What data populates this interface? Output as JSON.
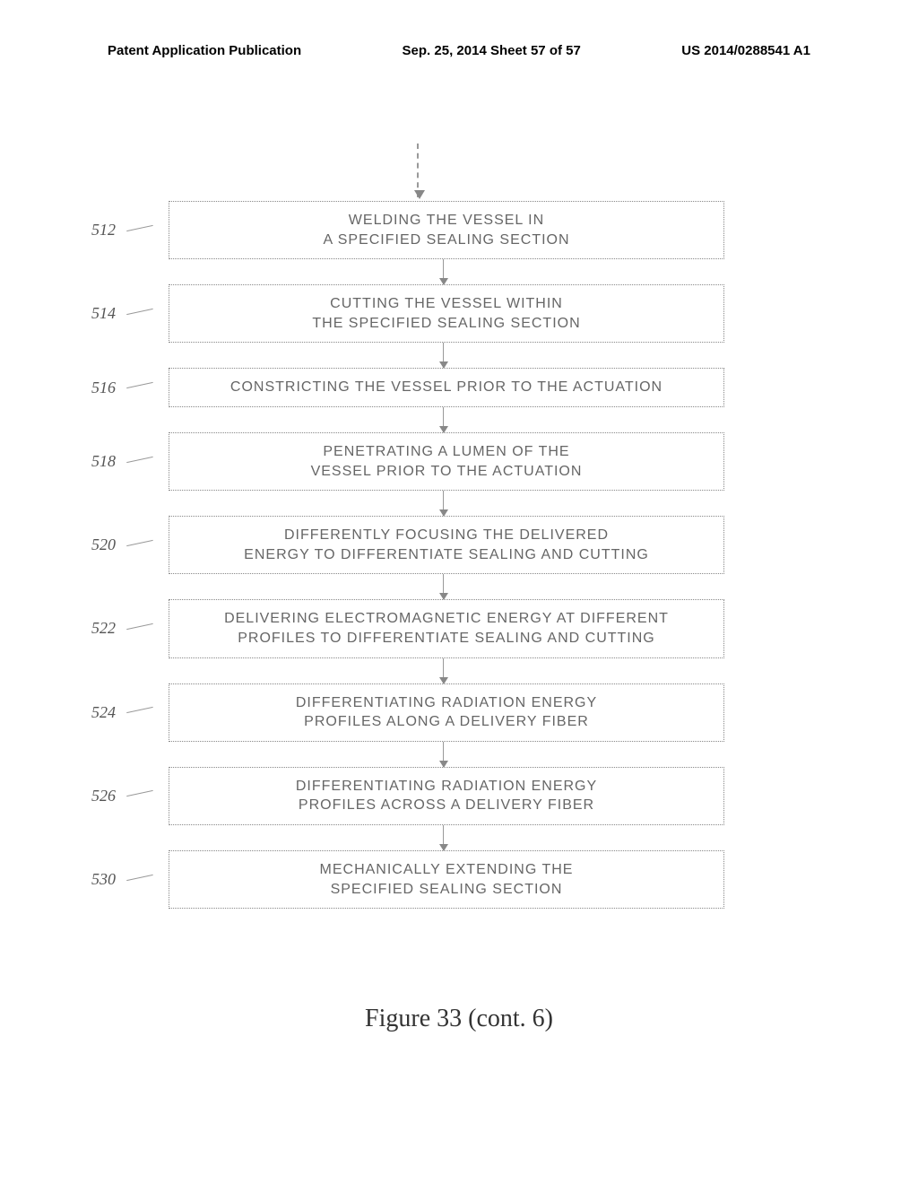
{
  "header": {
    "left": "Patent Application Publication",
    "center": "Sep. 25, 2014  Sheet 57 of 57",
    "right": "US 2014/0288541 A1"
  },
  "steps": [
    {
      "ref": "512",
      "text_line1": "WELDING THE VESSEL IN",
      "text_line2": "A SPECIFIED SEALING SECTION"
    },
    {
      "ref": "514",
      "text_line1": "CUTTING THE VESSEL WITHIN",
      "text_line2": "THE SPECIFIED SEALING SECTION"
    },
    {
      "ref": "516",
      "text_line1": "CONSTRICTING THE VESSEL PRIOR TO THE ACTUATION",
      "text_line2": ""
    },
    {
      "ref": "518",
      "text_line1": "PENETRATING A LUMEN OF THE",
      "text_line2": "VESSEL PRIOR TO THE ACTUATION"
    },
    {
      "ref": "520",
      "text_line1": "DIFFERENTLY FOCUSING THE DELIVERED",
      "text_line2": "ENERGY TO DIFFERENTIATE SEALING AND CUTTING"
    },
    {
      "ref": "522",
      "text_line1": "DELIVERING ELECTROMAGNETIC ENERGY AT DIFFERENT",
      "text_line2": "PROFILES TO DIFFERENTIATE SEALING AND CUTTING"
    },
    {
      "ref": "524",
      "text_line1": "DIFFERENTIATING RADIATION ENERGY",
      "text_line2": "PROFILES ALONG A DELIVERY FIBER"
    },
    {
      "ref": "526",
      "text_line1": "DIFFERENTIATING RADIATION ENERGY",
      "text_line2": "PROFILES ACROSS A DELIVERY FIBER"
    },
    {
      "ref": "530",
      "text_line1": "MECHANICALLY EXTENDING THE",
      "text_line2": "SPECIFIED SEALING SECTION"
    }
  ],
  "caption": "Figure 33 (cont. 6)",
  "colors": {
    "box_border": "#888888",
    "text": "#666666",
    "ref_text": "#555555",
    "background": "#ffffff"
  }
}
